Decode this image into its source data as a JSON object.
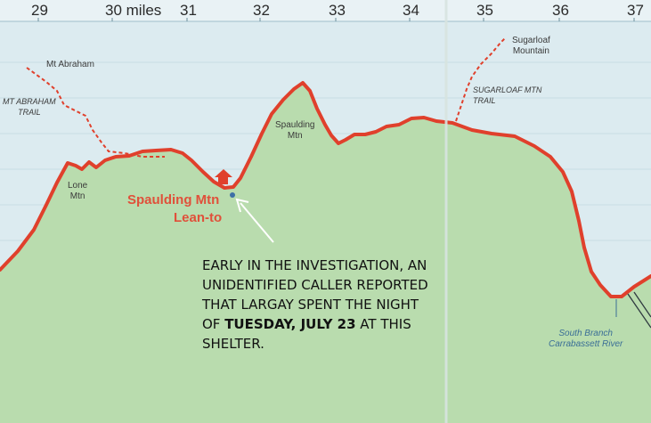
{
  "axis": {
    "ticks": [
      "29",
      "30 miles",
      "31",
      "32",
      "33",
      "34",
      "35",
      "36",
      "37"
    ]
  },
  "labels": {
    "mt_abraham": "Mt Abraham",
    "mt_abraham_trail": [
      "MT ABRAHAM",
      "TRAIL"
    ],
    "lone_mtn": [
      "Lone",
      "Mtn"
    ],
    "spaulding_mtn": [
      "Spaulding",
      "Mtn"
    ],
    "sugarloaf_mountain": [
      "Sugarloaf",
      "Mountain"
    ],
    "sugarloaf_mtn_trail": [
      "SUGARLOAF MTN",
      "TRAIL"
    ],
    "river": [
      "South Branch",
      "Carrabassett River"
    ],
    "shelter": [
      "Spaulding Mtn",
      "Lean-to"
    ]
  },
  "annotation": {
    "line1": "Early in the investigation, an",
    "line2": "unidentified caller reported",
    "line3": "that Largay spent the night",
    "line4_prefix": "of ",
    "line4_bold": "Tuesday, July 23",
    "line4_suffix": " at this",
    "line5": "shelter."
  },
  "colors": {
    "sky": "#dcebf0",
    "land": "#b9dcae",
    "profile": "#e0402c",
    "trail": "#e0402c",
    "river": "#3a6e96",
    "shelter_label": "#e0503a"
  }
}
